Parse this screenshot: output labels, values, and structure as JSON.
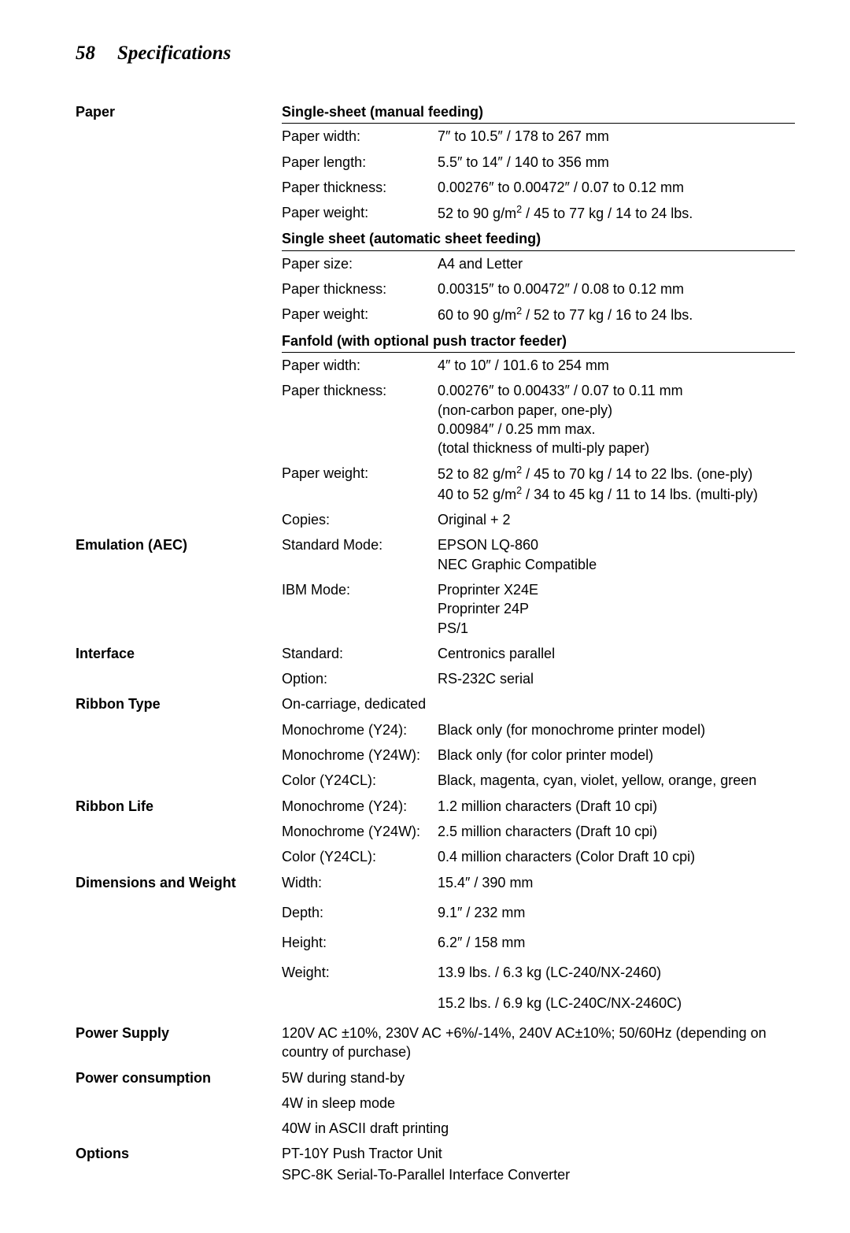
{
  "page_number": "58",
  "page_title": "Specifications",
  "fonts": {
    "header_family": "Times New Roman",
    "body_family": "Arial",
    "header_size_pt": 25,
    "body_size_pt": 18,
    "color": "#000000",
    "background": "#ffffff"
  },
  "sections": {
    "paper": {
      "label": "Paper",
      "groups": [
        {
          "header": "Single-sheet (manual feeding)",
          "rows": [
            {
              "k": "Paper width:",
              "v": "7″ to 10.5″ / 178 to 267 mm"
            },
            {
              "k": "Paper length:",
              "v": "5.5″ to 14″ / 140 to 356 mm"
            },
            {
              "k": "Paper thickness:",
              "v": "0.00276″ to 0.00472″ / 0.07 to 0.12 mm"
            },
            {
              "k": "Paper weight:",
              "v": "52 to 90 g/m² / 45 to 77 kg / 14 to 24 lbs."
            }
          ]
        },
        {
          "header": "Single sheet (automatic sheet feeding)",
          "rows": [
            {
              "k": "Paper size:",
              "v": "A4 and Letter"
            },
            {
              "k": "Paper thickness:",
              "v": "0.00315″ to 0.00472″ / 0.08 to 0.12 mm"
            },
            {
              "k": "Paper weight:",
              "v": "60 to 90 g/m² / 52 to 77 kg / 16 to 24 lbs."
            }
          ]
        },
        {
          "header": "Fanfold (with optional push tractor feeder)",
          "rows": [
            {
              "k": "Paper width:",
              "v": "4″ to 10″ / 101.6 to 254 mm"
            },
            {
              "k": "Paper thickness:",
              "v": "0.00276″ to 0.00433″ / 0.07 to 0.11 mm\n(non-carbon paper, one-ply)\n0.00984″ / 0.25 mm max.\n(total thickness of multi-ply paper)"
            },
            {
              "k": "Paper weight:",
              "v": "52 to 82 g/m² / 45 to 70 kg / 14 to 22 lbs. (one-ply)\n40 to 52 g/m² / 34 to 45 kg / 11 to 14 lbs. (multi-ply)"
            },
            {
              "k": "Copies:",
              "v": "Original + 2"
            }
          ]
        }
      ]
    },
    "emulation": {
      "label": "Emulation (AEC)",
      "rows": [
        {
          "k": "Standard Mode:",
          "v": "EPSON LQ-860\nNEC Graphic Compatible"
        },
        {
          "k": "IBM Mode:",
          "v": "Proprinter X24E\nProprinter 24P\nPS/1"
        }
      ]
    },
    "interface": {
      "label": "Interface",
      "rows": [
        {
          "k": "Standard:",
          "v": "Centronics parallel"
        },
        {
          "k": "Option:",
          "v": "RS-232C serial"
        }
      ]
    },
    "ribbon_type": {
      "label": "Ribbon Type",
      "lead": "On-carriage, dedicated",
      "rows": [
        {
          "k": "Monochrome (Y24):",
          "v": "Black only (for monochrome printer model)"
        },
        {
          "k": "Monochrome (Y24W):",
          "v": "Black only (for color printer model)"
        },
        {
          "k": "Color (Y24CL):",
          "v": "Black, magenta, cyan, violet, yellow, orange, green"
        }
      ]
    },
    "ribbon_life": {
      "label": "Ribbon Life",
      "rows": [
        {
          "k": "Monochrome (Y24):",
          "v": "1.2 million characters (Draft 10 cpi)"
        },
        {
          "k": "Monochrome (Y24W):",
          "v": "2.5 million characters (Draft 10 cpi)"
        },
        {
          "k": "Color (Y24CL):",
          "v": "0.4 million characters (Color Draft 10 cpi)"
        }
      ]
    },
    "dimensions": {
      "label": "Dimensions and Weight",
      "rows": [
        {
          "k": "Width:",
          "v": "15.4″ / 390 mm"
        },
        {
          "k": "Depth:",
          "v": "9.1″ / 232 mm"
        },
        {
          "k": "Height:",
          "v": "6.2″ / 158 mm"
        },
        {
          "k": "Weight:",
          "v": "13.9 lbs. / 6.3 kg (LC-240/NX-2460)"
        }
      ],
      "extra": "15.2 lbs. / 6.9 kg (LC-240C/NX-2460C)"
    },
    "power_supply": {
      "label": "Power Supply",
      "text": "120V AC ±10%, 230V AC +6%/-14%, 240V AC±10%; 50/60Hz (depending on country of purchase)"
    },
    "power_consumption": {
      "label": "Power consumption",
      "lines": [
        "5W during stand-by",
        "4W in sleep mode",
        "40W in ASCII draft printing"
      ]
    },
    "options": {
      "label": "Options",
      "lines": [
        "PT-10Y Push Tractor Unit",
        "SPC-8K Serial-To-Parallel Interface Converter"
      ]
    }
  }
}
